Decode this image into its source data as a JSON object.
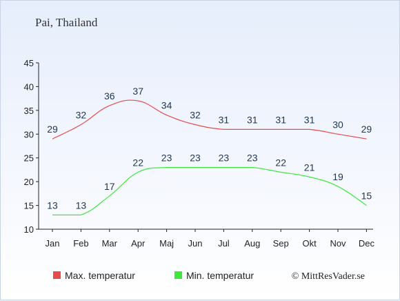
{
  "chart_data": {
    "type": "line",
    "title": "Pai, Thailand",
    "categories": [
      "Jan",
      "Feb",
      "Mar",
      "Apr",
      "Maj",
      "Jun",
      "Jul",
      "Aug",
      "Sep",
      "Okt",
      "Nov",
      "Dec"
    ],
    "ylim": [
      10,
      45
    ],
    "yticks": [
      10,
      15,
      20,
      25,
      30,
      35,
      40,
      45
    ],
    "series": [
      {
        "name": "Max. temperatur",
        "color": "#e84a4a",
        "values": [
          29,
          32,
          36,
          37,
          34,
          32,
          31,
          31,
          31,
          31,
          30,
          29
        ]
      },
      {
        "name": "Min. temperatur",
        "color": "#3ee83e",
        "values": [
          13,
          13,
          17,
          22,
          23,
          23,
          23,
          23,
          22,
          21,
          19,
          15
        ]
      }
    ],
    "legend_placement": "bottom",
    "grid": false
  },
  "credit": "© MittResVader.se"
}
